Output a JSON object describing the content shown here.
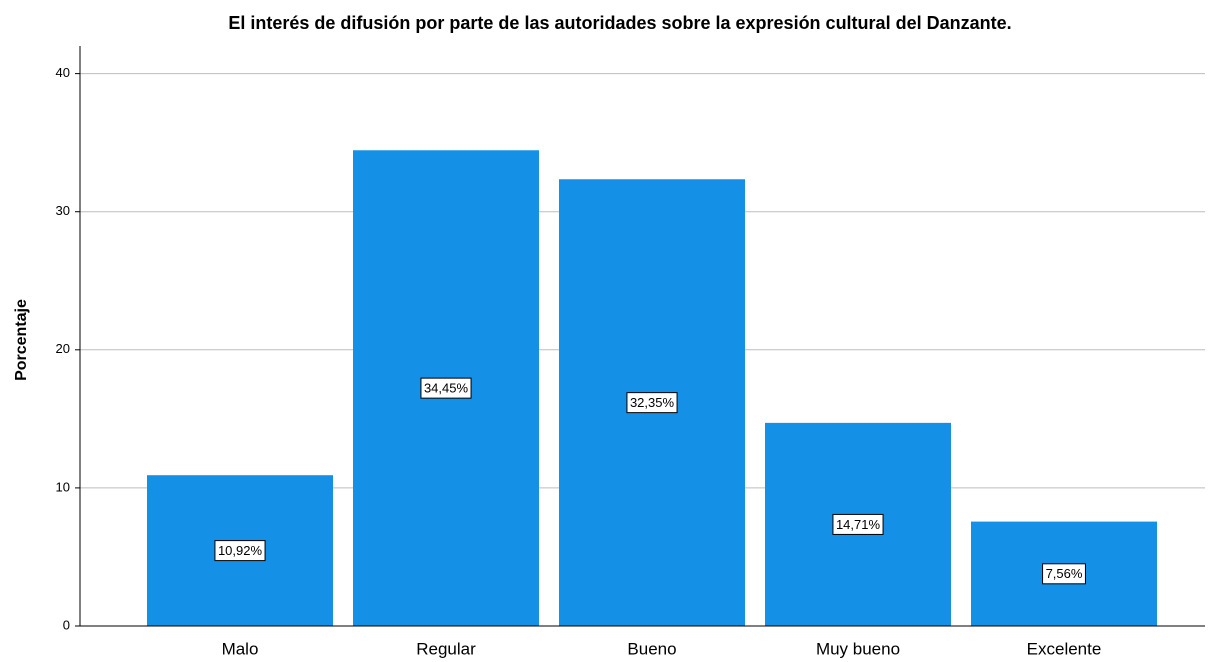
{
  "chart_data": {
    "type": "bar",
    "title": "El interés de difusión por parte de las autoridades sobre la expresión cultural del Danzante.",
    "y_label": "Porcentaje",
    "categories": [
      "Malo",
      "Regular",
      "Bueno",
      "Muy bueno",
      "Excelente"
    ],
    "values": [
      10.92,
      34.45,
      32.35,
      14.71,
      7.56
    ],
    "value_labels": [
      "10,92%",
      "34,45%",
      "32,35%",
      "14,71%",
      "7,56%"
    ],
    "color": "#1490e6",
    "ylim": [
      0,
      42
    ],
    "yticks": [
      0,
      10,
      20,
      30,
      40
    ],
    "grid": true
  }
}
